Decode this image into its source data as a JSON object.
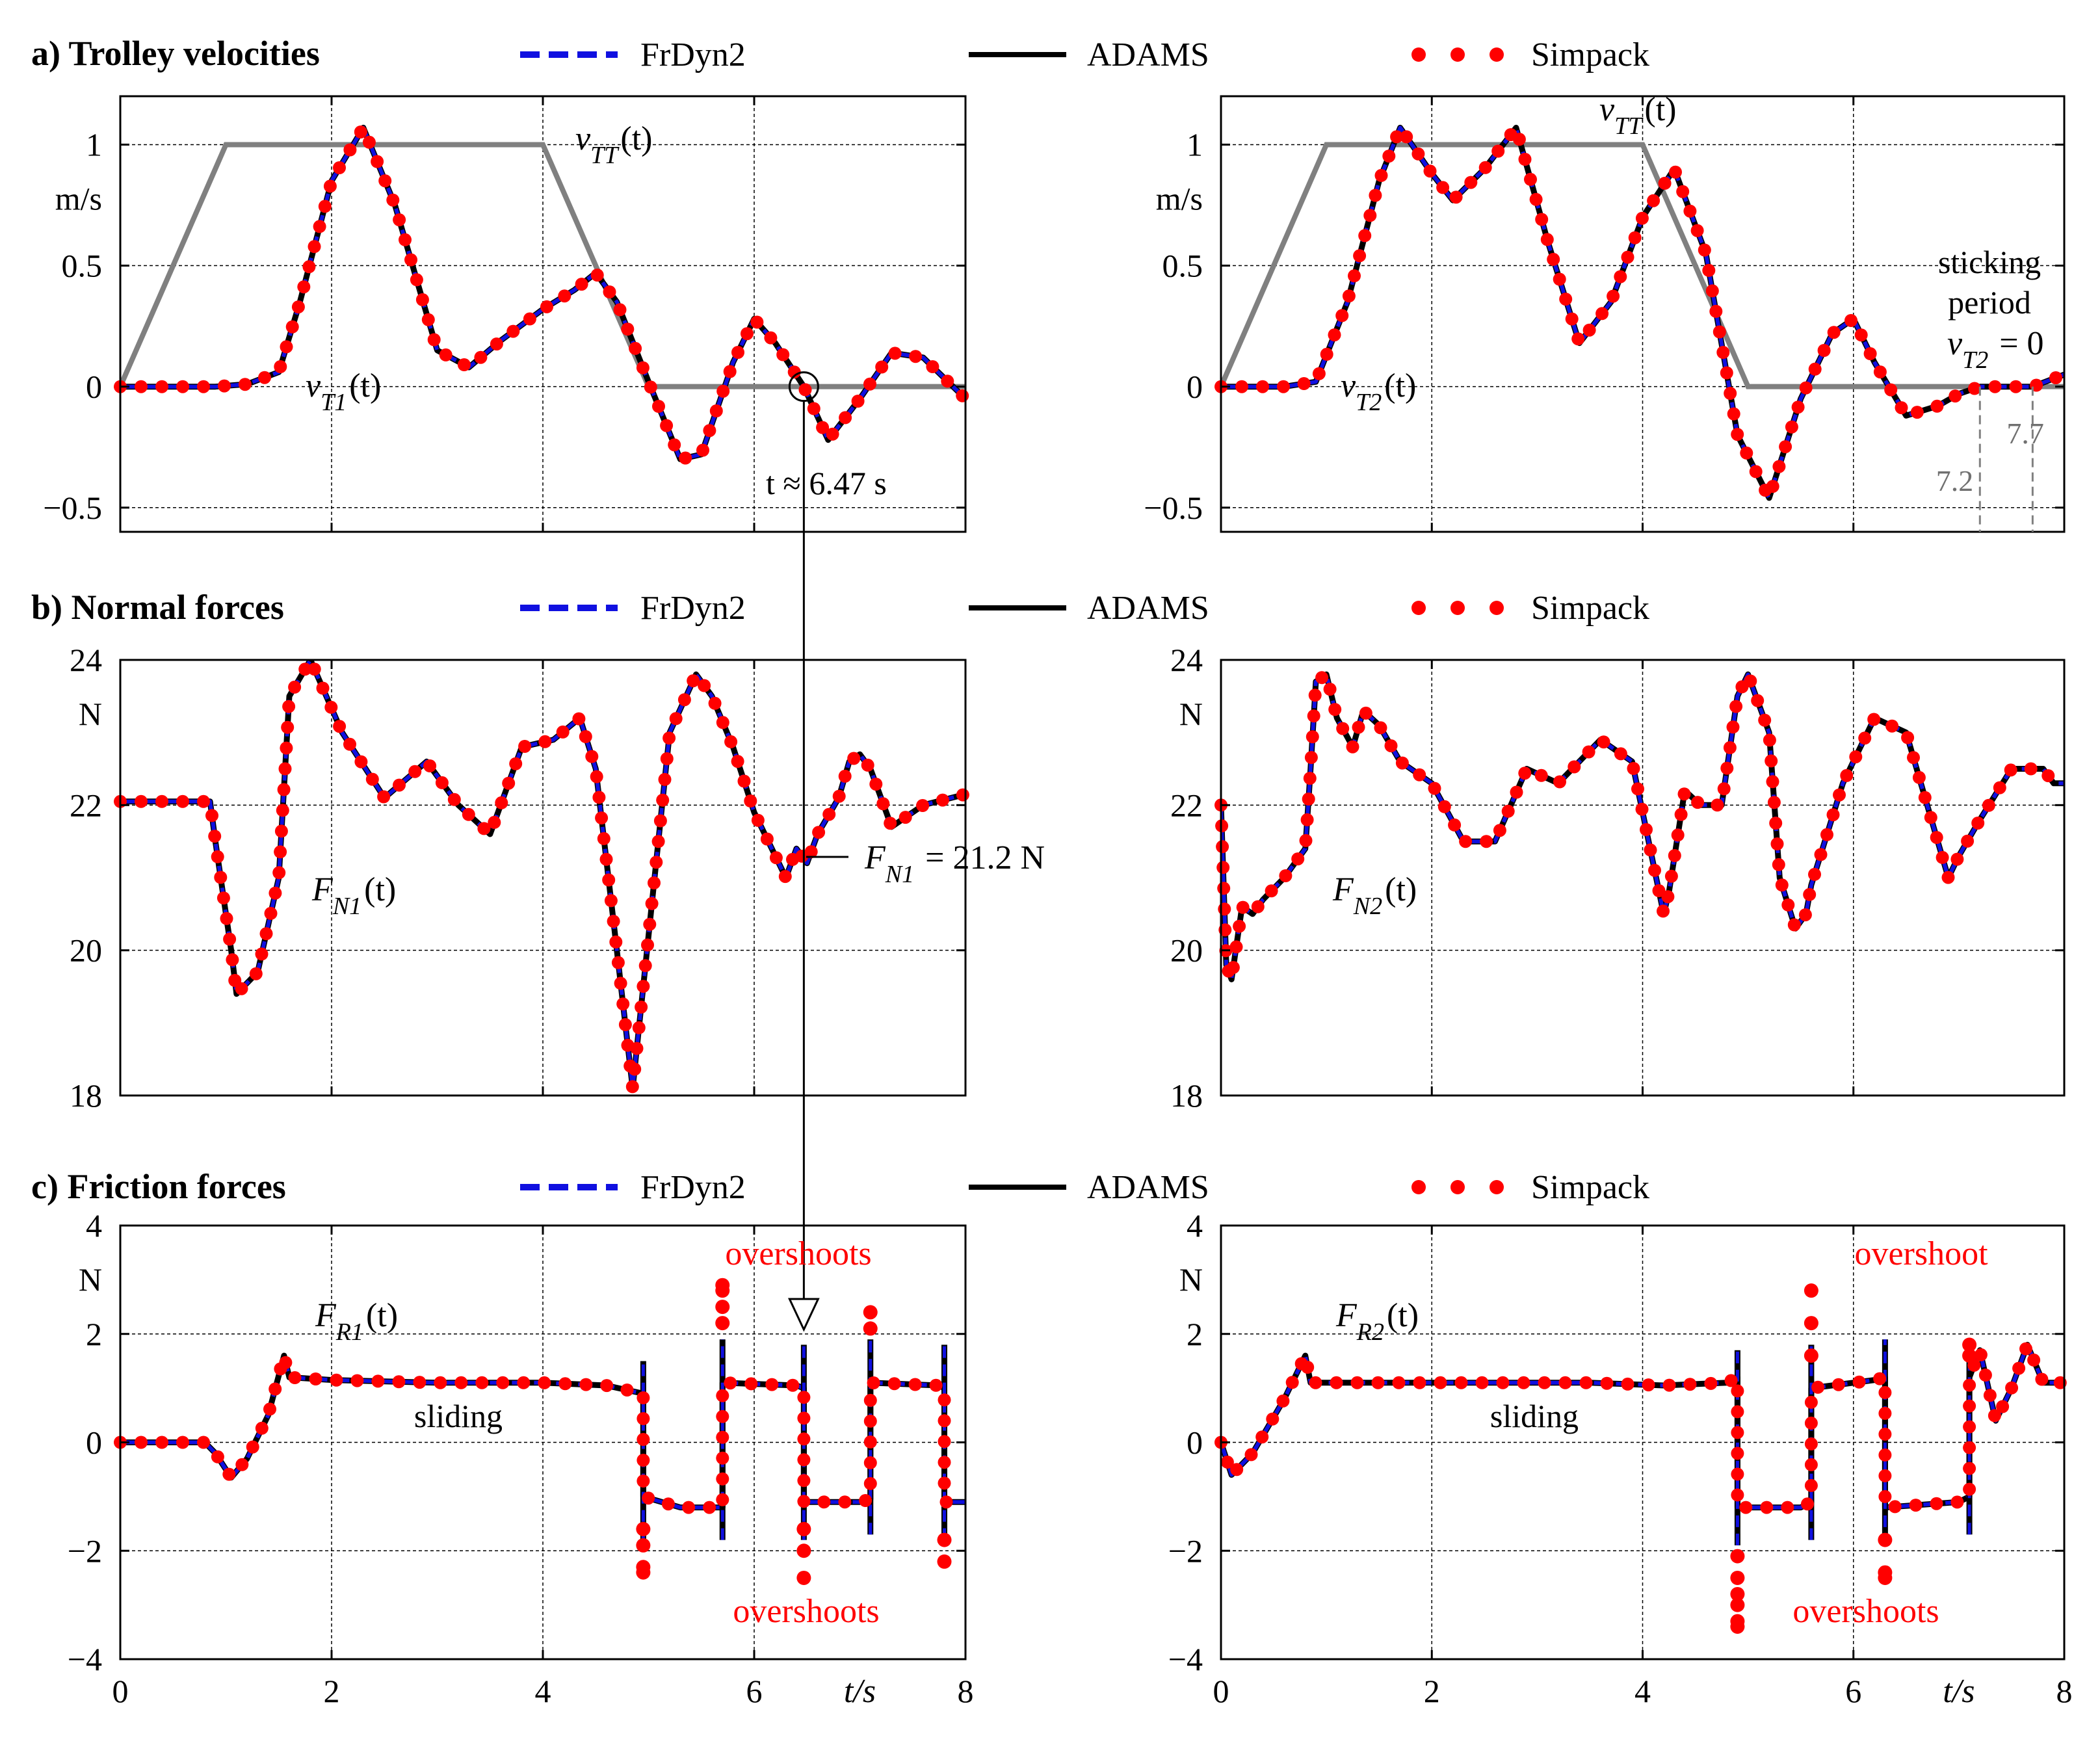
{
  "colors": {
    "frdyn2": "#1010e0",
    "adams": "#000000",
    "simpack": "#ff0000",
    "reference": "#808080",
    "annotation_red": "#ff0000"
  },
  "legend": {
    "frdyn2": "FrDyn2",
    "adams": "ADAMS",
    "simpack": "Simpack"
  },
  "chart_data": [
    {
      "id": "velocity-left",
      "type": "line",
      "panel_title": "a) Trolley velocities",
      "unit_label": "m/s",
      "xlim": [
        0,
        8
      ],
      "ylim": [
        -0.6,
        1.2
      ],
      "xticks": [
        0,
        2,
        4,
        6,
        8
      ],
      "yticks": [
        -0.5,
        0,
        0.5,
        1
      ],
      "ytick_labels": [
        "−0.5",
        "0",
        "0.5",
        "1"
      ],
      "grid": true,
      "reference": {
        "label": "v_TT(t)",
        "x": [
          0,
          1,
          4,
          5,
          8
        ],
        "y": [
          0,
          1,
          1,
          0,
          0
        ]
      },
      "curve_label": "v_T1(t)",
      "series": [
        {
          "name": "FrDyn2",
          "style": "dashed"
        },
        {
          "name": "ADAMS",
          "style": "solid"
        },
        {
          "name": "Simpack",
          "style": "dotted"
        }
      ],
      "x": [
        0,
        0.9,
        1.2,
        1.5,
        1.7,
        2.0,
        2.3,
        2.6,
        3.0,
        3.3,
        3.6,
        4.0,
        4.3,
        4.5,
        4.7,
        5.0,
        5.3,
        5.5,
        5.8,
        6.0,
        6.2,
        6.47,
        6.7,
        7.0,
        7.3,
        7.6,
        8.0
      ],
      "y": [
        0,
        0,
        0.01,
        0.06,
        0.35,
        0.85,
        1.07,
        0.75,
        0.15,
        0.08,
        0.19,
        0.32,
        0.4,
        0.47,
        0.35,
        0.02,
        -0.3,
        -0.28,
        0.1,
        0.28,
        0.18,
        0,
        -0.22,
        -0.05,
        0.14,
        0.12,
        -0.05
      ],
      "annotations": {
        "time": "t ≈ 6.47 s"
      }
    },
    {
      "id": "velocity-right",
      "type": "line",
      "unit_label": "m/s",
      "xlim": [
        0,
        8
      ],
      "ylim": [
        -0.6,
        1.2
      ],
      "xticks": [
        0,
        2,
        4,
        6,
        8
      ],
      "yticks": [
        -0.5,
        0,
        0.5,
        1
      ],
      "ytick_labels": [
        "−0.5",
        "0",
        "0.5",
        "1"
      ],
      "grid": true,
      "reference": {
        "label": "v_TT(t)",
        "x": [
          0,
          1,
          4,
          5,
          8
        ],
        "y": [
          0,
          1,
          1,
          0,
          0
        ]
      },
      "curve_label": "v_T2(t)",
      "series": [
        {
          "name": "FrDyn2",
          "style": "dashed"
        },
        {
          "name": "ADAMS",
          "style": "solid"
        },
        {
          "name": "Simpack",
          "style": "dotted"
        }
      ],
      "x": [
        0,
        0.6,
        0.9,
        1.2,
        1.5,
        1.7,
        2.0,
        2.2,
        2.5,
        2.8,
        3.1,
        3.4,
        3.7,
        4.0,
        4.3,
        4.6,
        4.9,
        5.2,
        5.5,
        5.8,
        6.0,
        6.2,
        6.5,
        6.8,
        7.0,
        7.2,
        7.5,
        7.7,
        8.0
      ],
      "y": [
        0,
        0,
        0.02,
        0.35,
        0.85,
        1.07,
        0.88,
        0.77,
        0.9,
        1.07,
        0.6,
        0.18,
        0.35,
        0.7,
        0.9,
        0.55,
        -0.2,
        -0.46,
        -0.05,
        0.22,
        0.28,
        0.1,
        -0.12,
        -0.08,
        -0.03,
        0,
        0,
        0,
        0.05
      ],
      "annotations": {
        "sticking_line1": "sticking",
        "sticking_line2": "period",
        "sticking_line3": "v_T2 = 0",
        "t_start": "7.2",
        "t_end": "7.7"
      }
    },
    {
      "id": "normal-left",
      "type": "line",
      "panel_title": "b) Normal forces",
      "unit_label": "N",
      "xlim": [
        0,
        8
      ],
      "ylim": [
        18,
        24
      ],
      "xticks": [
        0,
        2,
        4,
        6,
        8
      ],
      "yticks": [
        18,
        20,
        22,
        24
      ],
      "ytick_labels": [
        "18",
        "20",
        "22",
        "24"
      ],
      "grid": true,
      "curve_label": "F_N1(t)",
      "series": [
        {
          "name": "FrDyn2",
          "style": "dashed"
        },
        {
          "name": "ADAMS",
          "style": "solid"
        },
        {
          "name": "Simpack",
          "style": "dotted"
        }
      ],
      "x": [
        0,
        0.85,
        0.9,
        1.05,
        1.1,
        1.3,
        1.5,
        1.6,
        1.8,
        2.1,
        2.5,
        2.9,
        3.2,
        3.5,
        3.8,
        4.1,
        4.35,
        4.5,
        4.7,
        4.85,
        5.0,
        5.2,
        5.45,
        5.6,
        5.8,
        6.0,
        6.1,
        6.3,
        6.4,
        6.5,
        6.6,
        6.8,
        6.9,
        7.0,
        7.1,
        7.3,
        7.6,
        8.0
      ],
      "y": [
        22.05,
        22.05,
        21.5,
        20.0,
        19.4,
        19.7,
        21.0,
        23.5,
        24.0,
        23.0,
        22.1,
        22.6,
        22.0,
        21.6,
        22.8,
        22.9,
        23.2,
        22.5,
        20.0,
        18.1,
        20.2,
        23.0,
        23.8,
        23.5,
        22.8,
        21.9,
        21.6,
        21.0,
        21.4,
        21.2,
        21.6,
        22.1,
        22.6,
        22.7,
        22.5,
        21.7,
        22.0,
        22.15
      ],
      "annotations": {
        "force": "F_N1 = 21.2 N"
      }
    },
    {
      "id": "normal-right",
      "type": "line",
      "unit_label": "N",
      "xlim": [
        0,
        8
      ],
      "ylim": [
        18,
        24
      ],
      "xticks": [
        0,
        2,
        4,
        6,
        8
      ],
      "yticks": [
        18,
        20,
        22,
        24
      ],
      "ytick_labels": [
        "18",
        "20",
        "22",
        "24"
      ],
      "grid": true,
      "curve_label": "F_N2(t)",
      "series": [
        {
          "name": "FrDyn2",
          "style": "dashed"
        },
        {
          "name": "ADAMS",
          "style": "solid"
        },
        {
          "name": "Simpack",
          "style": "dotted"
        }
      ],
      "x": [
        0,
        0.05,
        0.1,
        0.2,
        0.3,
        0.4,
        0.6,
        0.8,
        0.85,
        0.9,
        1.0,
        1.1,
        1.25,
        1.35,
        1.5,
        1.7,
        2.0,
        2.3,
        2.6,
        2.9,
        3.2,
        3.4,
        3.6,
        3.9,
        4.1,
        4.2,
        4.25,
        4.4,
        4.55,
        4.75,
        4.9,
        5.0,
        5.2,
        5.3,
        5.45,
        5.55,
        5.6,
        5.9,
        6.2,
        6.5,
        6.7,
        6.9,
        7.0,
        7.2,
        7.5,
        7.8,
        7.9,
        8.0
      ],
      "y": [
        22.0,
        19.8,
        19.6,
        20.6,
        20.5,
        20.7,
        21.0,
        21.4,
        22.5,
        23.7,
        23.8,
        23.2,
        22.8,
        23.3,
        23.1,
        22.6,
        22.3,
        21.5,
        21.5,
        22.5,
        22.3,
        22.6,
        22.9,
        22.6,
        21.2,
        20.5,
        20.8,
        22.2,
        22.0,
        22.0,
        23.5,
        23.8,
        23.0,
        21.0,
        20.3,
        20.5,
        20.9,
        22.3,
        23.2,
        23.0,
        22.0,
        21.0,
        21.3,
        21.8,
        22.5,
        22.5,
        22.3,
        22.3
      ],
      "annotations": {}
    },
    {
      "id": "friction-left",
      "type": "line",
      "panel_title": "c) Friction forces",
      "unit_label": "N",
      "xlabel": "t/s",
      "xlim": [
        0,
        8
      ],
      "ylim": [
        -4,
        4
      ],
      "xticks": [
        0,
        2,
        4,
        6,
        8
      ],
      "yticks": [
        -4,
        -2,
        0,
        2,
        4
      ],
      "ytick_labels": [
        "−4",
        "−2",
        "0",
        "2",
        "4"
      ],
      "grid": true,
      "curve_label": "F_R1(t)",
      "series": [
        {
          "name": "FrDyn2",
          "style": "dashed"
        },
        {
          "name": "ADAMS",
          "style": "solid"
        },
        {
          "name": "Simpack",
          "style": "dotted"
        }
      ],
      "x": [
        0,
        0.8,
        0.9,
        1.05,
        1.2,
        1.4,
        1.55,
        1.6,
        2.0,
        3.0,
        4.0,
        4.6,
        4.95,
        4.95,
        5.3,
        5.7,
        5.7,
        6.4,
        6.47,
        6.47,
        7.0,
        7.1,
        7.1,
        7.75,
        7.8,
        7.8,
        8.0
      ],
      "y": [
        0,
        0,
        -0.2,
        -0.65,
        -0.3,
        0.5,
        1.6,
        1.2,
        1.15,
        1.1,
        1.1,
        1.05,
        0.9,
        -1.0,
        -1.2,
        -1.2,
        1.1,
        1.05,
        1.0,
        -1.1,
        -1.1,
        -1.05,
        1.1,
        1.05,
        1.0,
        -1.1,
        -1.1
      ],
      "jumps": [
        {
          "x": 4.95,
          "ylow": -1.8,
          "yhigh": 1.5,
          "sim": [
            -1.6,
            -1.9,
            -2.3,
            -2.4
          ]
        },
        {
          "x": 5.7,
          "ylow": -1.8,
          "yhigh": 1.9,
          "sim": [
            2.2,
            2.5,
            2.8,
            2.9
          ]
        },
        {
          "x": 6.47,
          "ylow": -1.8,
          "yhigh": 1.8,
          "sim": [
            -1.6,
            -2.0,
            -2.5
          ]
        },
        {
          "x": 7.1,
          "ylow": -1.7,
          "yhigh": 1.9,
          "sim": [
            2.1,
            2.4
          ]
        },
        {
          "x": 7.8,
          "ylow": -1.8,
          "yhigh": 1.8,
          "sim": [
            -1.8,
            -2.2
          ]
        }
      ],
      "annotations": {
        "sliding": "sliding",
        "overshoots_top": "overshoots",
        "overshoots_bottom": "overshoots"
      }
    },
    {
      "id": "friction-right",
      "type": "line",
      "unit_label": "N",
      "xlabel": "t/s",
      "xlim": [
        0,
        8
      ],
      "ylim": [
        -4,
        4
      ],
      "xticks": [
        0,
        2,
        4,
        6,
        8
      ],
      "yticks": [
        -4,
        -2,
        0,
        2,
        4
      ],
      "ytick_labels": [
        "−4",
        "−2",
        "0",
        "2",
        "4"
      ],
      "grid": true,
      "curve_label": "F_R2(t)",
      "series": [
        {
          "name": "FrDyn2",
          "style": "dashed"
        },
        {
          "name": "ADAMS",
          "style": "solid"
        },
        {
          "name": "Simpack",
          "style": "dotted"
        }
      ],
      "x": [
        0,
        0.1,
        0.3,
        0.6,
        0.8,
        0.85,
        0.9,
        1.5,
        2.5,
        3.5,
        4.2,
        4.8,
        4.9,
        4.9,
        5.5,
        5.6,
        5.6,
        6.2,
        6.3,
        6.3,
        7.0,
        7.1,
        7.1,
        7.2,
        7.35,
        7.5,
        7.65,
        7.8,
        8.0
      ],
      "y": [
        0,
        -0.6,
        -0.2,
        0.8,
        1.6,
        1.1,
        1.1,
        1.1,
        1.1,
        1.1,
        1.05,
        1.1,
        1.2,
        -1.2,
        -1.2,
        -1.1,
        1.0,
        1.15,
        1.2,
        -1.2,
        -1.1,
        -1.0,
        1.2,
        1.7,
        0.4,
        1.0,
        1.8,
        1.1,
        1.1
      ],
      "jumps": [
        {
          "x": 4.9,
          "ylow": -1.9,
          "yhigh": 1.7,
          "sim": [
            -2.1,
            -2.5,
            -2.8,
            -3.0,
            -3.3,
            -3.4
          ]
        },
        {
          "x": 5.6,
          "ylow": -1.8,
          "yhigh": 1.8,
          "sim": [
            1.6,
            2.2,
            2.8
          ]
        },
        {
          "x": 6.3,
          "ylow": -1.9,
          "yhigh": 1.9,
          "sim": [
            -1.8,
            -2.4,
            -2.5
          ]
        },
        {
          "x": 7.1,
          "ylow": -1.7,
          "yhigh": 1.6,
          "sim": [
            1.8,
            1.6
          ]
        }
      ],
      "annotations": {
        "sliding": "sliding",
        "overshoots_top": "overshoot",
        "overshoots_bottom": "overshoots"
      }
    }
  ]
}
